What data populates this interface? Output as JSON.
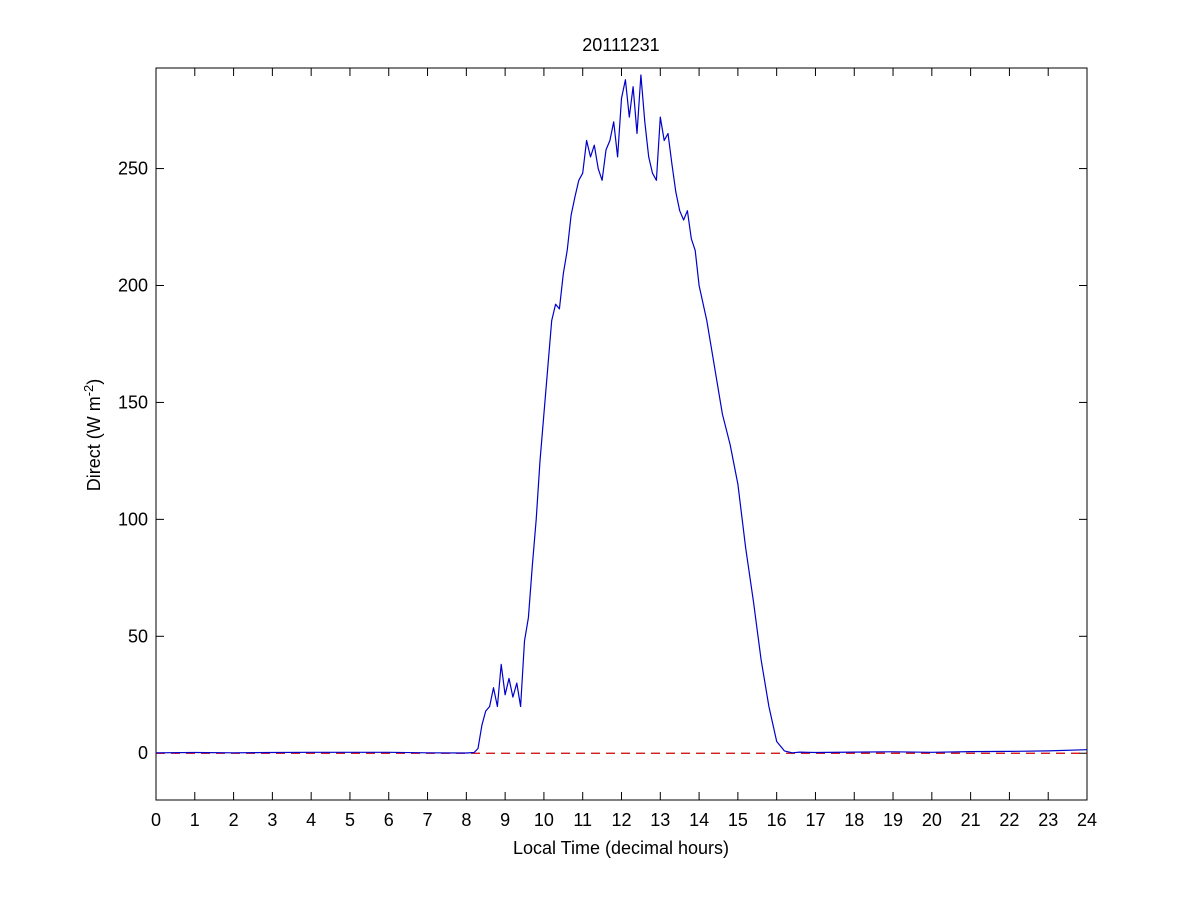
{
  "chart_data": {
    "type": "line",
    "title": "20111231",
    "xlabel": "Local Time (decimal hours)",
    "ylabel": {
      "prefix": "Direct (W m",
      "superscript": "-2",
      "suffix": ")"
    },
    "xlim": [
      0,
      24
    ],
    "ylim": [
      -20,
      293
    ],
    "xticks": [
      0,
      1,
      2,
      3,
      4,
      5,
      6,
      7,
      8,
      9,
      10,
      11,
      12,
      13,
      14,
      15,
      16,
      17,
      18,
      19,
      20,
      21,
      22,
      23,
      24
    ],
    "yticks": [
      0,
      50,
      100,
      150,
      200,
      250
    ],
    "grid": false,
    "colors": {
      "series": "#0000cc",
      "reference": "#cc0000",
      "axes": "#000000"
    },
    "reference_line": {
      "y": 0,
      "style": "dashed"
    },
    "series": [
      {
        "x": [
          0,
          1,
          2,
          3,
          4,
          5,
          6,
          7,
          8,
          8.2,
          8.3,
          8.4,
          8.5,
          8.6,
          8.7,
          8.8,
          8.9,
          9.0,
          9.1,
          9.2,
          9.3,
          9.4,
          9.5,
          9.6,
          9.7,
          9.8,
          9.9,
          10.0,
          10.1,
          10.2,
          10.3,
          10.4,
          10.5,
          10.6,
          10.7,
          10.8,
          10.9,
          11.0,
          11.1,
          11.2,
          11.3,
          11.4,
          11.5,
          11.6,
          11.7,
          11.8,
          11.9,
          12.0,
          12.1,
          12.2,
          12.3,
          12.4,
          12.5,
          12.6,
          12.7,
          12.8,
          12.9,
          13.0,
          13.1,
          13.2,
          13.3,
          13.4,
          13.5,
          13.6,
          13.7,
          13.8,
          13.9,
          14.0,
          14.2,
          14.4,
          14.6,
          14.8,
          15.0,
          15.2,
          15.4,
          15.6,
          15.8,
          16.0,
          16.2,
          16.4,
          16.6,
          16.8,
          17,
          18,
          19,
          20,
          21,
          22,
          23,
          24
        ],
        "values": [
          0.2,
          0.3,
          0.2,
          0.3,
          0.4,
          0.4,
          0.4,
          0.2,
          0.1,
          0.3,
          2,
          12,
          18,
          20,
          28,
          20,
          38,
          25,
          32,
          24,
          30,
          20,
          48,
          58,
          80,
          100,
          125,
          145,
          165,
          185,
          192,
          190,
          205,
          215,
          230,
          238,
          245,
          248,
          262,
          255,
          260,
          250,
          245,
          258,
          262,
          270,
          255,
          280,
          288,
          272,
          285,
          265,
          290,
          270,
          255,
          248,
          245,
          272,
          262,
          265,
          252,
          240,
          232,
          228,
          232,
          220,
          215,
          200,
          185,
          165,
          145,
          132,
          115,
          88,
          65,
          40,
          20,
          5,
          1,
          0.2,
          0.5,
          0.4,
          0.3,
          0.5,
          0.6,
          0.4,
          0.7,
          0.8,
          1.0,
          1.5
        ]
      }
    ]
  }
}
